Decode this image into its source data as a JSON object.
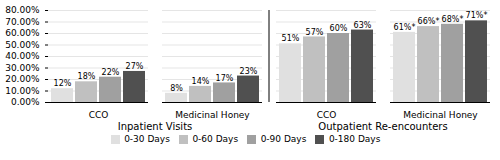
{
  "chart_data": {
    "type": "bar",
    "categories": [
      "CCO",
      "Medicinal Honey",
      "CCO",
      "Medicinal Honey"
    ],
    "sections": [
      "Inpatient Visits",
      "Inpatient Visits",
      "Outpatient Re-encounters",
      "Outpatient Re-encounters"
    ],
    "series": [
      {
        "name": "0-30 Days",
        "color": "#e0e0e0",
        "values": [
          12,
          8,
          51,
          61
        ],
        "value_labels": [
          "12%",
          "8%",
          "51%",
          "61%*"
        ]
      },
      {
        "name": "0-60 Days",
        "color": "#c0c0c0",
        "values": [
          18,
          14,
          57,
          66
        ],
        "value_labels": [
          "18%",
          "14%",
          "57%",
          "66%*"
        ]
      },
      {
        "name": "0-90 Days",
        "color": "#a0a0a0",
        "values": [
          22,
          17,
          60,
          68
        ],
        "value_labels": [
          "22%",
          "17%",
          "60%",
          "68%*"
        ]
      },
      {
        "name": "0-180 Days",
        "color": "#505050",
        "values": [
          27,
          23,
          63,
          71
        ],
        "value_labels": [
          "27%",
          "23%",
          "63%",
          "71%*"
        ]
      }
    ],
    "ylim": [
      0,
      80
    ],
    "yticks": [
      {
        "value": 0,
        "label": "0.00%"
      },
      {
        "value": 10,
        "label": "10.00%"
      },
      {
        "value": 20,
        "label": "20.00%"
      },
      {
        "value": 30,
        "label": "30.00%"
      },
      {
        "value": 40,
        "label": "40.00%"
      },
      {
        "value": 50,
        "label": "50.00%"
      },
      {
        "value": 60,
        "label": "60.00%"
      },
      {
        "value": 70,
        "label": "70.00%"
      },
      {
        "value": 80,
        "label": "80.00%"
      }
    ],
    "grid": true,
    "data_labels": true,
    "legend": "bottom"
  }
}
